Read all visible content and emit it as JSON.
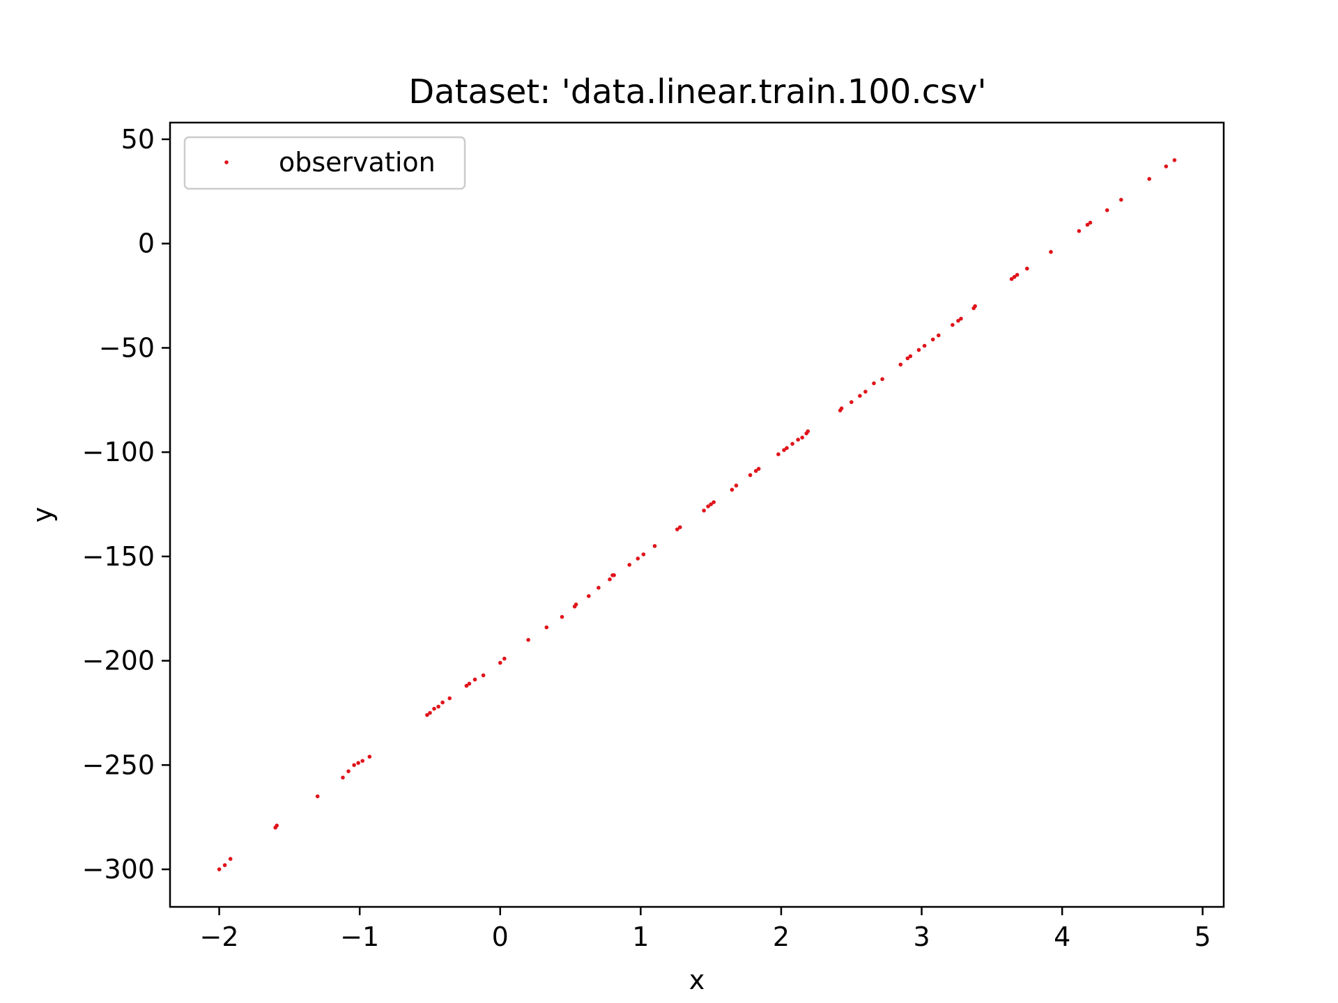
{
  "chart_data": {
    "type": "scatter",
    "title": "Dataset: 'data.linear.train.100.csv'",
    "xlabel": "x",
    "ylabel": "y",
    "xlim": [
      -2.35,
      5.15
    ],
    "ylim": [
      -318,
      58
    ],
    "xticks": [
      -2,
      -1,
      0,
      1,
      2,
      3,
      4,
      5
    ],
    "xtick_labels": [
      "−2",
      "−1",
      "0",
      "1",
      "2",
      "3",
      "4",
      "5"
    ],
    "yticks": [
      50,
      0,
      -50,
      -100,
      -150,
      -200,
      -250,
      -300
    ],
    "ytick_labels": [
      "50",
      "0",
      "−50",
      "−100",
      "−150",
      "−200",
      "−250",
      "−300"
    ],
    "grid": false,
    "legend": {
      "position": "top-left",
      "entries": [
        "observation"
      ]
    },
    "series": [
      {
        "name": "observation",
        "color": "#e0131a",
        "points": [
          [
            -2.0,
            -300
          ],
          [
            -1.96,
            -298
          ],
          [
            -1.92,
            -295
          ],
          [
            -1.6,
            -280
          ],
          [
            -1.59,
            -279
          ],
          [
            -1.3,
            -265
          ],
          [
            -1.12,
            -256
          ],
          [
            -1.08,
            -253
          ],
          [
            -1.04,
            -250
          ],
          [
            -1.01,
            -249
          ],
          [
            -0.98,
            -248
          ],
          [
            -0.93,
            -246
          ],
          [
            -0.52,
            -226
          ],
          [
            -0.5,
            -225
          ],
          [
            -0.47,
            -223
          ],
          [
            -0.44,
            -222
          ],
          [
            -0.41,
            -220
          ],
          [
            -0.36,
            -218
          ],
          [
            -0.24,
            -212
          ],
          [
            -0.22,
            -211
          ],
          [
            -0.18,
            -209
          ],
          [
            -0.12,
            -207
          ],
          [
            0.0,
            -201
          ],
          [
            0.03,
            -199
          ],
          [
            0.2,
            -190
          ],
          [
            0.33,
            -184
          ],
          [
            0.44,
            -179
          ],
          [
            0.53,
            -174
          ],
          [
            0.54,
            -173
          ],
          [
            0.63,
            -169
          ],
          [
            0.7,
            -165
          ],
          [
            0.78,
            -161
          ],
          [
            0.8,
            -159
          ],
          [
            0.81,
            -159
          ],
          [
            0.92,
            -154
          ],
          [
            0.98,
            -151
          ],
          [
            1.02,
            -149
          ],
          [
            1.1,
            -145
          ],
          [
            1.26,
            -137
          ],
          [
            1.28,
            -136
          ],
          [
            1.45,
            -128
          ],
          [
            1.48,
            -126
          ],
          [
            1.5,
            -125
          ],
          [
            1.52,
            -124
          ],
          [
            1.65,
            -118
          ],
          [
            1.68,
            -116
          ],
          [
            1.78,
            -111
          ],
          [
            1.82,
            -109
          ],
          [
            1.84,
            -108
          ],
          [
            1.98,
            -101
          ],
          [
            2.02,
            -99
          ],
          [
            2.04,
            -98
          ],
          [
            2.08,
            -96
          ],
          [
            2.12,
            -94
          ],
          [
            2.15,
            -93
          ],
          [
            2.18,
            -91
          ],
          [
            2.19,
            -90
          ],
          [
            2.42,
            -80
          ],
          [
            2.43,
            -79
          ],
          [
            2.5,
            -76
          ],
          [
            2.56,
            -73
          ],
          [
            2.6,
            -71
          ],
          [
            2.66,
            -67
          ],
          [
            2.72,
            -65
          ],
          [
            2.85,
            -58
          ],
          [
            2.9,
            -55
          ],
          [
            2.92,
            -54
          ],
          [
            2.98,
            -51
          ],
          [
            3.02,
            -49
          ],
          [
            3.08,
            -46
          ],
          [
            3.12,
            -44
          ],
          [
            3.22,
            -39
          ],
          [
            3.26,
            -37
          ],
          [
            3.28,
            -36
          ],
          [
            3.37,
            -31
          ],
          [
            3.38,
            -30
          ],
          [
            3.64,
            -17
          ],
          [
            3.66,
            -16
          ],
          [
            3.68,
            -15
          ],
          [
            3.75,
            -12
          ],
          [
            3.92,
            -4
          ],
          [
            4.12,
            6
          ],
          [
            4.18,
            9
          ],
          [
            4.2,
            10
          ],
          [
            4.32,
            16
          ],
          [
            4.42,
            21
          ],
          [
            4.62,
            31
          ],
          [
            4.74,
            37
          ],
          [
            4.8,
            40
          ]
        ]
      }
    ]
  }
}
